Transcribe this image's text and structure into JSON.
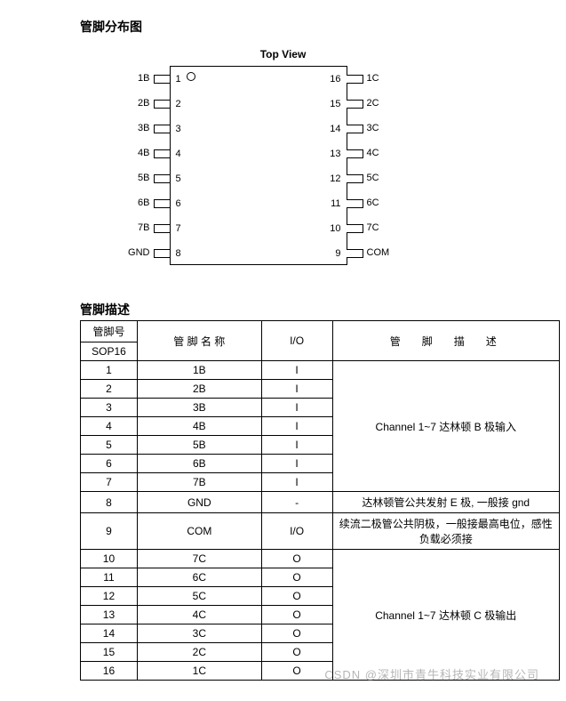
{
  "titles": {
    "pinout": "管脚分布图",
    "desc": "管脚描述",
    "topview": "Top View"
  },
  "chip": {
    "type": "pinout-diagram",
    "package": "SOP16",
    "body_border_color": "#000000",
    "background_color": "#ffffff",
    "left_pins": [
      {
        "num": "1",
        "label": "1B"
      },
      {
        "num": "2",
        "label": "2B"
      },
      {
        "num": "3",
        "label": "3B"
      },
      {
        "num": "4",
        "label": "4B"
      },
      {
        "num": "5",
        "label": "5B"
      },
      {
        "num": "6",
        "label": "6B"
      },
      {
        "num": "7",
        "label": "7B"
      },
      {
        "num": "8",
        "label": "GND"
      }
    ],
    "right_pins": [
      {
        "num": "16",
        "label": "1C"
      },
      {
        "num": "15",
        "label": "2C"
      },
      {
        "num": "14",
        "label": "3C"
      },
      {
        "num": "13",
        "label": "4C"
      },
      {
        "num": "12",
        "label": "5C"
      },
      {
        "num": "11",
        "label": "6C"
      },
      {
        "num": "10",
        "label": "7C"
      },
      {
        "num": "9",
        "label": "COM"
      }
    ]
  },
  "table": {
    "type": "table",
    "border_color": "#000000",
    "font_size": 12,
    "headers": {
      "pinno_top": "管脚号",
      "pinno_bot": "SOP16",
      "name": "管 脚 名 称",
      "io": "I/O",
      "desc": "管　脚　描　述"
    },
    "group1_desc": "Channel 1~7  达林顿 B 极输入",
    "row8_desc": "达林顿管公共发射 E 极, 一般接 gnd",
    "row9_desc": "续流二极管公共阴极，一般接最高电位，感性负载必须接",
    "group2_desc": "Channel 1~7  达林顿 C 极输出",
    "rows": [
      {
        "no": "1",
        "name": "1B",
        "io": "I"
      },
      {
        "no": "2",
        "name": "2B",
        "io": "I"
      },
      {
        "no": "3",
        "name": "3B",
        "io": "I"
      },
      {
        "no": "4",
        "name": "4B",
        "io": "I"
      },
      {
        "no": "5",
        "name": "5B",
        "io": "I"
      },
      {
        "no": "6",
        "name": "6B",
        "io": "I"
      },
      {
        "no": "7",
        "name": "7B",
        "io": "I"
      },
      {
        "no": "8",
        "name": "GND",
        "io": "-"
      },
      {
        "no": "9",
        "name": "COM",
        "io": "I/O"
      },
      {
        "no": "10",
        "name": "7C",
        "io": "O"
      },
      {
        "no": "11",
        "name": "6C",
        "io": "O"
      },
      {
        "no": "12",
        "name": "5C",
        "io": "O"
      },
      {
        "no": "13",
        "name": "4C",
        "io": "O"
      },
      {
        "no": "14",
        "name": "3C",
        "io": "O"
      },
      {
        "no": "15",
        "name": "2C",
        "io": "O"
      },
      {
        "no": "16",
        "name": "1C",
        "io": "O"
      }
    ]
  },
  "watermark": "CSDN @深圳市青牛科技实业有限公司"
}
